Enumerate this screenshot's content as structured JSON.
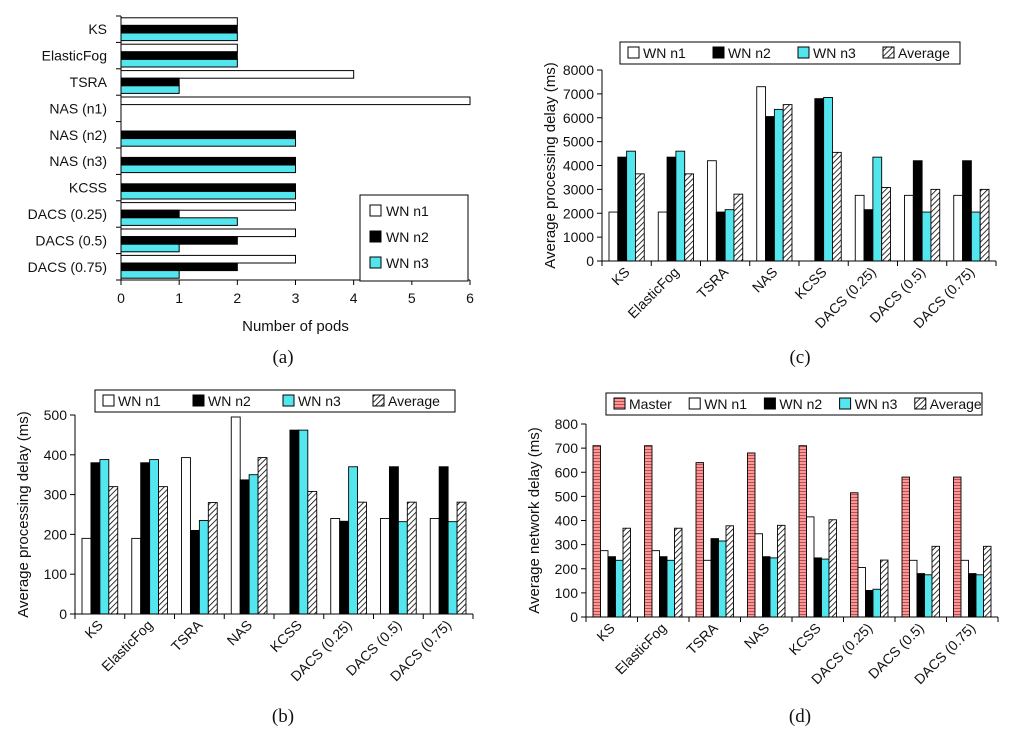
{
  "colors": {
    "wn_n1": "#ffffff",
    "wn_n2": "#000000",
    "wn_n3": "#53e6ee",
    "average": "hatched-diagonal",
    "master": "#f39a9a"
  },
  "chart_data": [
    {
      "id": "a",
      "type": "bar",
      "orientation": "horizontal",
      "caption": "(a)",
      "categories": [
        "KS",
        "ElasticFog",
        "TSRA",
        "NAS (n1)",
        "NAS (n2)",
        "NAS (n3)",
        "KCSS",
        "DACS (0.25)",
        "DACS (0.5)",
        "DACS (0.75)"
      ],
      "series": [
        {
          "name": "WN n1",
          "values": [
            2,
            2,
            4,
            6,
            0,
            0,
            0,
            3,
            3,
            3
          ]
        },
        {
          "name": "WN n2",
          "values": [
            2,
            2,
            1,
            0,
            3,
            3,
            3,
            1,
            2,
            2
          ]
        },
        {
          "name": "WN n3",
          "values": [
            2,
            2,
            1,
            0,
            3,
            3,
            3,
            2,
            1,
            1
          ]
        }
      ],
      "xlabel": "Number of pods",
      "ylabel": "",
      "xlim": [
        0,
        6
      ],
      "xticks": [
        "0",
        "1",
        "2",
        "3",
        "4",
        "5",
        "6"
      ],
      "legend": "bottom-right"
    },
    {
      "id": "b",
      "type": "bar",
      "caption": "(b)",
      "categories": [
        "KS",
        "ElasticFog",
        "TSRA",
        "NAS",
        "KCSS",
        "DACS (0.25)",
        "DACS (0.5)",
        "DACS (0.75)"
      ],
      "series": [
        {
          "name": "WN n1",
          "values": [
            190,
            190,
            393,
            495,
            0,
            240,
            240,
            240
          ]
        },
        {
          "name": "WN n2",
          "values": [
            380,
            380,
            210,
            337,
            462,
            233,
            370,
            370
          ]
        },
        {
          "name": "WN n3",
          "values": [
            388,
            388,
            235,
            350,
            462,
            370,
            232,
            232
          ]
        },
        {
          "name": "Average",
          "values": [
            320,
            320,
            280,
            393,
            308,
            281,
            281,
            281
          ]
        }
      ],
      "xlabel": "",
      "ylabel": "Average processing delay (ms)",
      "ylim": [
        0,
        500
      ],
      "yticks": [
        "0",
        "100",
        "200",
        "300",
        "400",
        "500"
      ],
      "legend": "top"
    },
    {
      "id": "c",
      "type": "bar",
      "caption": "(c)",
      "categories": [
        "KS",
        "ElasticFog",
        "TSRA",
        "NAS",
        "KCSS",
        "DACS (0.25)",
        "DACS (0.5)",
        "DACS (0.75)"
      ],
      "series": [
        {
          "name": "WN n1",
          "values": [
            2050,
            2050,
            4200,
            7300,
            0,
            2750,
            2750,
            2750
          ]
        },
        {
          "name": "WN n2",
          "values": [
            4350,
            4350,
            2050,
            6050,
            6800,
            2150,
            4200,
            4200
          ]
        },
        {
          "name": "WN n3",
          "values": [
            4600,
            4600,
            2150,
            6350,
            6850,
            4350,
            2050,
            2050
          ]
        },
        {
          "name": "Average",
          "values": [
            3650,
            3650,
            2800,
            6550,
            4550,
            3080,
            3000,
            3000
          ]
        }
      ],
      "xlabel": "",
      "ylabel": "Average processing delay (ms)",
      "ylim": [
        0,
        8000
      ],
      "yticks": [
        "0",
        "1000",
        "2000",
        "3000",
        "4000",
        "5000",
        "6000",
        "7000",
        "8000"
      ],
      "legend": "top"
    },
    {
      "id": "d",
      "type": "bar",
      "caption": "(d)",
      "categories": [
        "KS",
        "ElasticFog",
        "TSRA",
        "NAS",
        "KCSS",
        "DACS (0.25)",
        "DACS (0.5)",
        "DACS (0.75)"
      ],
      "series": [
        {
          "name": "Master",
          "values": [
            710,
            710,
            640,
            680,
            710,
            515,
            580,
            580
          ]
        },
        {
          "name": "WN n1",
          "values": [
            275,
            275,
            235,
            345,
            415,
            205,
            235,
            235
          ]
        },
        {
          "name": "WN n2",
          "values": [
            250,
            250,
            325,
            250,
            245,
            110,
            180,
            180
          ]
        },
        {
          "name": "WN n3",
          "values": [
            235,
            235,
            315,
            245,
            240,
            115,
            175,
            175
          ]
        },
        {
          "name": "Average",
          "values": [
            368,
            368,
            378,
            380,
            403,
            236,
            293,
            293
          ]
        }
      ],
      "xlabel": "",
      "ylabel": "Average network delay (ms)",
      "ylim": [
        0,
        800
      ],
      "yticks": [
        "0",
        "100",
        "200",
        "300",
        "400",
        "500",
        "600",
        "700",
        "800"
      ],
      "legend": "top"
    }
  ]
}
